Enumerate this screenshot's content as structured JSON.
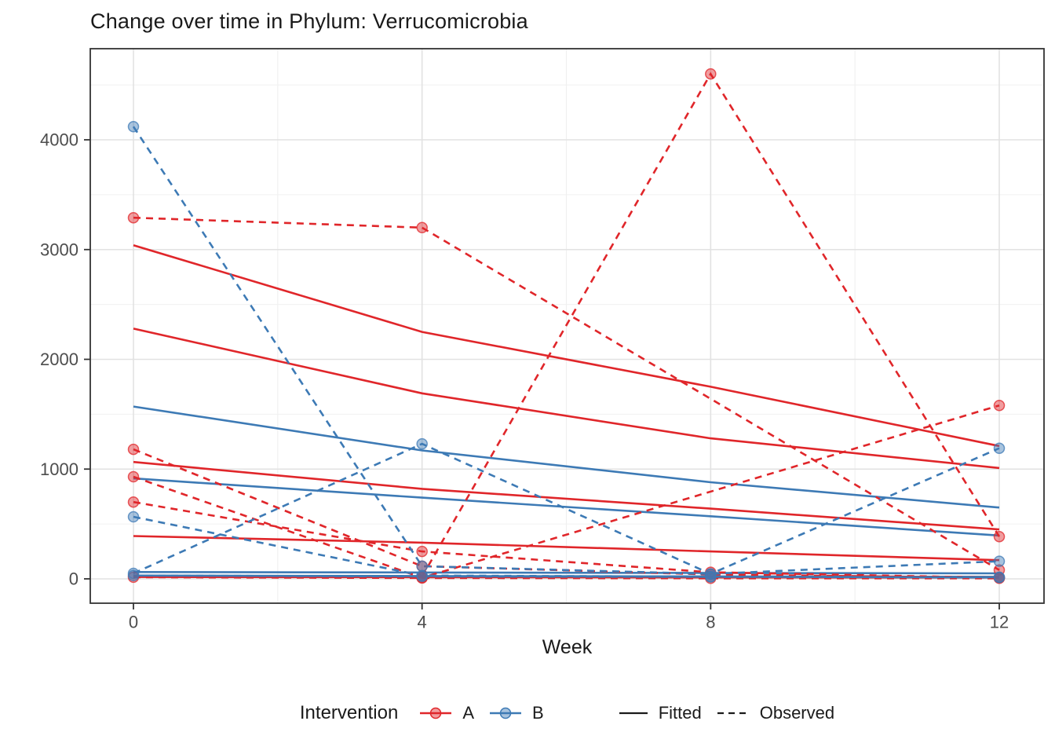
{
  "title": "Change over time in Phylum: Verrucomicrobia",
  "axes": {
    "x": {
      "label": "Week",
      "ticks": [
        0,
        4,
        8,
        12
      ],
      "minor_ticks": [
        2,
        6,
        10
      ]
    },
    "y": {
      "ticks": [
        0,
        1000,
        2000,
        3000,
        4000
      ],
      "minor_ticks": [
        500,
        1500,
        2500,
        3500,
        4500
      ]
    }
  },
  "legend": {
    "title": "Intervention",
    "groups": [
      {
        "label": "A",
        "color": "#E0262A"
      },
      {
        "label": "B",
        "color": "#3D7AB5"
      }
    ],
    "linetypes": [
      {
        "label": "Fitted",
        "style": "solid"
      },
      {
        "label": "Observed",
        "style": "dashed"
      }
    ]
  },
  "colors": {
    "group_a": "#E0262A",
    "group_b": "#3D7AB5",
    "grid_major": "#E2E2E2",
    "grid_minor": "#F0F0F0",
    "panel_border": "#333333",
    "tick_label": "#4D4D4D",
    "key_line": "#1a1a1a"
  },
  "chart_data": {
    "type": "line",
    "title": "Change over time in Phylum: Verrucomicrobia",
    "xlabel": "Week",
    "ylabel": "",
    "x": [
      0,
      4,
      8,
      12
    ],
    "xlim": [
      -0.6,
      12.6
    ],
    "ylim": [
      -230,
      4830
    ],
    "grid": true,
    "legend_position": "bottom",
    "series": [
      {
        "name": "A-fitted-1",
        "group": "A",
        "kind": "fitted",
        "values": [
          3040,
          2250,
          1750,
          1210
        ]
      },
      {
        "name": "A-fitted-2",
        "group": "A",
        "kind": "fitted",
        "values": [
          2280,
          1690,
          1280,
          1010
        ]
      },
      {
        "name": "A-fitted-3",
        "group": "A",
        "kind": "fitted",
        "values": [
          1065,
          820,
          640,
          450
        ]
      },
      {
        "name": "A-fitted-4",
        "group": "A",
        "kind": "fitted",
        "values": [
          390,
          330,
          250,
          170
        ]
      },
      {
        "name": "A-fitted-5",
        "group": "A",
        "kind": "fitted",
        "values": [
          20,
          18,
          16,
          15
        ],
        "bold": true
      },
      {
        "name": "B-fitted-1",
        "group": "B",
        "kind": "fitted",
        "values": [
          1570,
          1170,
          880,
          650
        ]
      },
      {
        "name": "B-fitted-2",
        "group": "B",
        "kind": "fitted",
        "values": [
          915,
          740,
          570,
          395
        ]
      },
      {
        "name": "B-fitted-3",
        "group": "B",
        "kind": "fitted",
        "values": [
          62,
          58,
          54,
          50
        ]
      },
      {
        "name": "B-fitted-4",
        "group": "B",
        "kind": "fitted",
        "values": [
          30,
          26,
          22,
          18
        ]
      },
      {
        "name": "A-observed-1",
        "group": "A",
        "kind": "observed",
        "values": [
          3290,
          3200,
          null,
          80
        ]
      },
      {
        "name": "A-observed-2",
        "group": "A",
        "kind": "observed",
        "values": [
          null,
          20,
          4600,
          385
        ]
      },
      {
        "name": "A-observed-3",
        "group": "A",
        "kind": "observed",
        "values": [
          1180,
          115,
          40,
          10
        ]
      },
      {
        "name": "A-observed-4",
        "group": "A",
        "kind": "observed",
        "values": [
          930,
          10,
          null,
          1580
        ]
      },
      {
        "name": "A-observed-5",
        "group": "A",
        "kind": "observed",
        "values": [
          700,
          250,
          60,
          10
        ]
      },
      {
        "name": "A-observed-6",
        "group": "A",
        "kind": "observed",
        "values": [
          15,
          8,
          5,
          5
        ]
      },
      {
        "name": "B-observed-1",
        "group": "B",
        "kind": "observed",
        "values": [
          4120,
          115,
          45,
          160
        ]
      },
      {
        "name": "B-observed-2",
        "group": "B",
        "kind": "observed",
        "values": [
          50,
          1230,
          45,
          1190
        ]
      },
      {
        "name": "B-observed-3",
        "group": "B",
        "kind": "observed",
        "values": [
          565,
          30,
          20,
          12
        ]
      },
      {
        "name": "B-observed-4",
        "group": "B",
        "kind": "observed",
        "values": [
          30,
          22,
          18,
          15
        ]
      }
    ]
  }
}
